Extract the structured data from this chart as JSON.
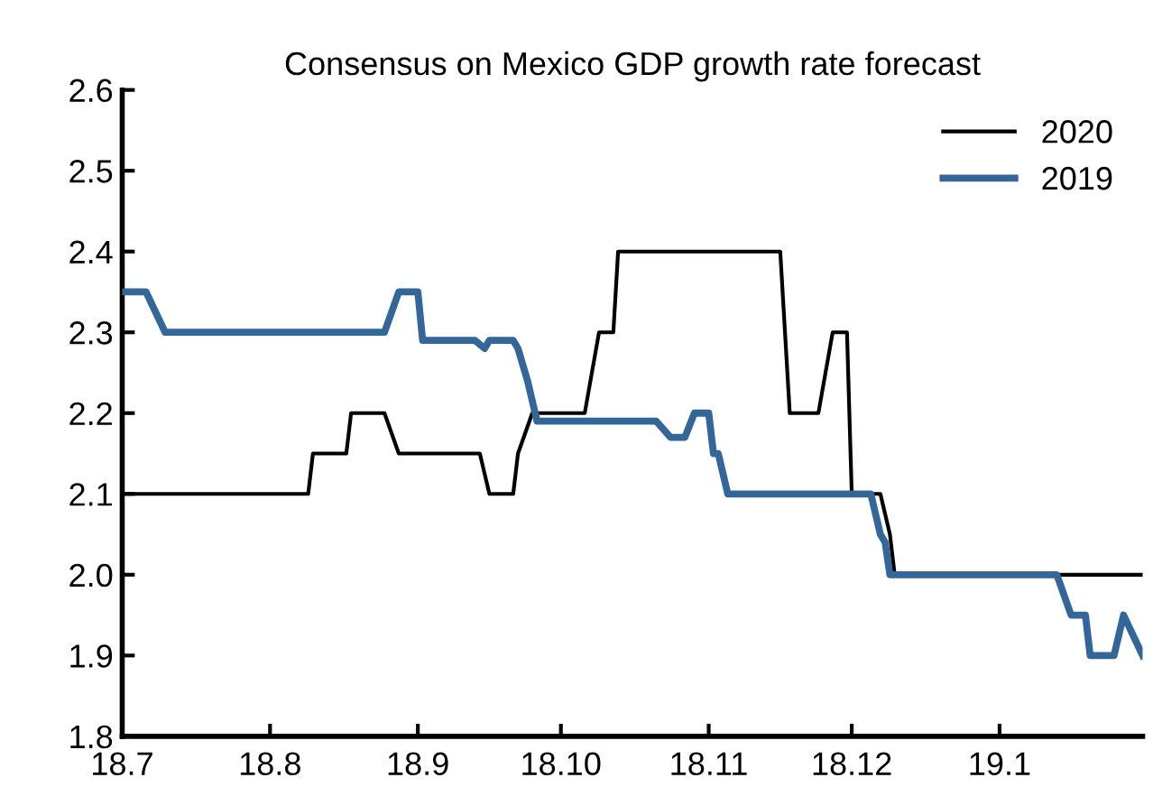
{
  "chart_data": {
    "type": "line",
    "title": "Consensus on Mexico GDP growth rate forecast",
    "xlim": [
      "2018-07-01",
      "2019-01-31"
    ],
    "xticks": [
      {
        "value": "2018-07-01",
        "label": "18.7"
      },
      {
        "value": "2018-08-01",
        "label": "18.8"
      },
      {
        "value": "2018-09-01",
        "label": "18.9"
      },
      {
        "value": "2018-10-01",
        "label": "18.10"
      },
      {
        "value": "2018-11-01",
        "label": "18.11"
      },
      {
        "value": "2018-12-01",
        "label": "18.12"
      },
      {
        "value": "2019-01-01",
        "label": "19.1"
      }
    ],
    "ylim": [
      1.8,
      2.6
    ],
    "yticks": [
      {
        "value": 1.8,
        "label": "1.8"
      },
      {
        "value": 1.9,
        "label": "1.9"
      },
      {
        "value": 2.0,
        "label": "2.0"
      },
      {
        "value": 2.1,
        "label": "2.1"
      },
      {
        "value": 2.2,
        "label": "2.2"
      },
      {
        "value": 2.3,
        "label": "2.3"
      },
      {
        "value": 2.4,
        "label": "2.4"
      },
      {
        "value": 2.5,
        "label": "2.5"
      },
      {
        "value": 2.6,
        "label": "2.6"
      }
    ],
    "grid": false,
    "legend": "top right",
    "marker": "none",
    "line_style": "solid",
    "series": [
      {
        "name": "2020",
        "color": "#000000",
        "x": [
          "2018-07-01",
          "2018-08-09",
          "2018-08-10",
          "2018-08-17",
          "2018-08-18",
          "2018-08-25",
          "2018-08-28",
          "2018-09-14",
          "2018-09-16",
          "2018-09-21",
          "2018-09-22",
          "2018-09-25",
          "2018-10-06",
          "2018-10-09",
          "2018-10-12",
          "2018-10-13",
          "2018-11-16",
          "2018-11-18",
          "2018-11-24",
          "2018-11-27",
          "2018-11-30",
          "2018-12-01",
          "2018-12-07",
          "2018-12-09",
          "2018-12-10",
          "2019-01-31"
        ],
        "values": [
          2.1,
          2.1,
          2.15,
          2.15,
          2.2,
          2.2,
          2.15,
          2.15,
          2.1,
          2.1,
          2.15,
          2.2,
          2.2,
          2.3,
          2.3,
          2.4,
          2.4,
          2.2,
          2.2,
          2.3,
          2.3,
          2.1,
          2.1,
          2.05,
          2.0,
          2.0
        ]
      },
      {
        "name": "2019",
        "color": "#336699",
        "x": [
          "2018-07-01",
          "2018-07-06",
          "2018-07-10",
          "2018-08-25",
          "2018-08-28",
          "2018-09-01",
          "2018-09-02",
          "2018-09-13",
          "2018-09-15",
          "2018-09-16",
          "2018-09-21",
          "2018-09-22",
          "2018-09-24",
          "2018-09-26",
          "2018-10-21",
          "2018-10-24",
          "2018-10-27",
          "2018-10-29",
          "2018-11-01",
          "2018-11-02",
          "2018-11-03",
          "2018-11-05",
          "2018-12-05",
          "2018-12-07",
          "2018-12-08",
          "2018-12-09",
          "2019-01-13",
          "2019-01-16",
          "2019-01-19",
          "2019-01-20",
          "2019-01-25",
          "2019-01-27",
          "2019-01-31"
        ],
        "values": [
          2.35,
          2.35,
          2.3,
          2.3,
          2.35,
          2.35,
          2.29,
          2.29,
          2.28,
          2.29,
          2.29,
          2.28,
          2.24,
          2.19,
          2.19,
          2.17,
          2.17,
          2.2,
          2.2,
          2.15,
          2.15,
          2.1,
          2.1,
          2.05,
          2.04,
          2.0,
          2.0,
          1.95,
          1.95,
          1.9,
          1.9,
          1.95,
          1.9
        ]
      }
    ]
  }
}
